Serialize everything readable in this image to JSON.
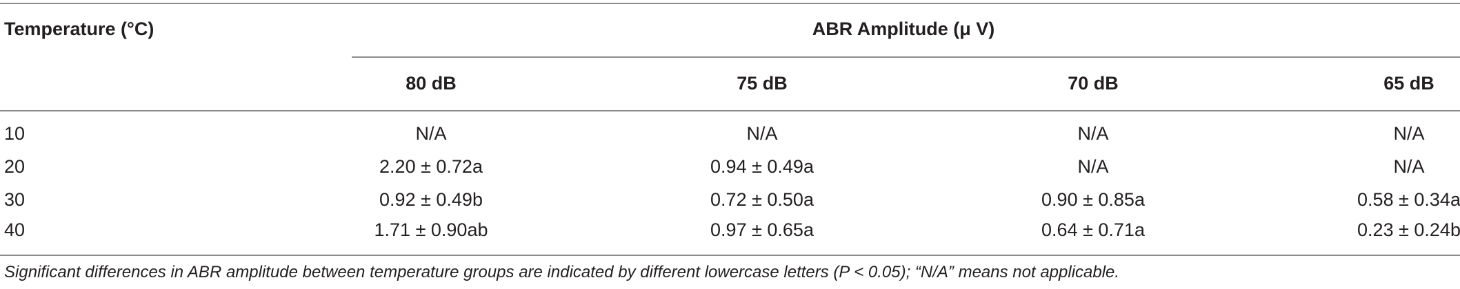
{
  "table": {
    "row_header_label": "Temperature (°C)",
    "group_header_label": "ABR Amplitude (μ V)",
    "columns": [
      "80 dB",
      "75 dB",
      "70 dB",
      "65 dB"
    ],
    "rows": [
      {
        "temperature": "10",
        "values": [
          "N/A",
          "N/A",
          "N/A",
          "N/A"
        ]
      },
      {
        "temperature": "20",
        "values": [
          "2.20 ± 0.72a",
          "0.94 ± 0.49a",
          "N/A",
          "N/A"
        ]
      },
      {
        "temperature": "30",
        "values": [
          "0.92 ± 0.49b",
          "0.72 ± 0.50a",
          "0.90 ± 0.85a",
          "0.58 ± 0.34a"
        ]
      },
      {
        "temperature": "40",
        "values": [
          "1.71 ± 0.90ab",
          "0.97 ± 0.65a",
          "0.64 ± 0.71a",
          "0.23 ± 0.24b"
        ]
      }
    ],
    "footnote": "Significant differences in ABR amplitude between temperature groups are indicated by different lowercase letters (P < 0.05); “N/A” means not applicable."
  }
}
